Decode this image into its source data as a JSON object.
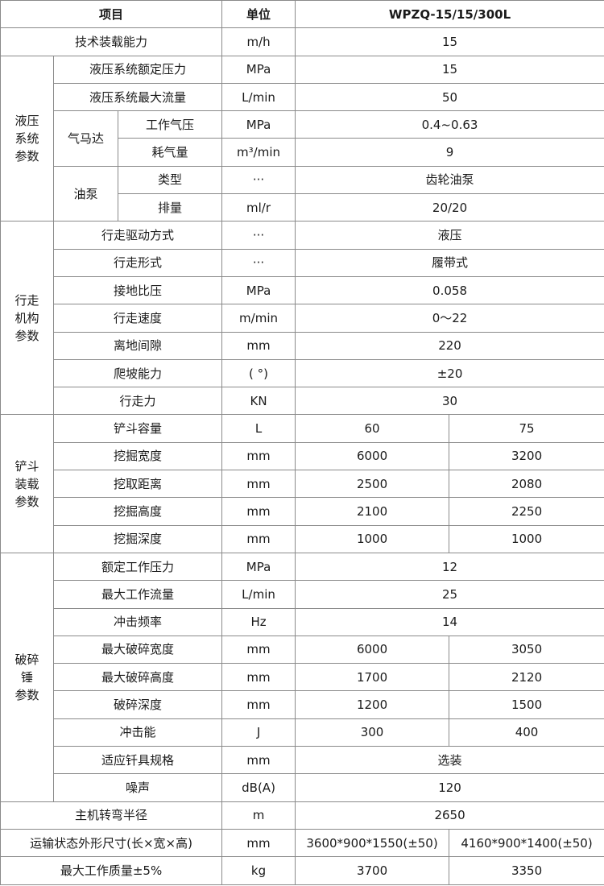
{
  "header": {
    "item": "项目",
    "unit": "单位",
    "model": "WPZQ-15/15/300L"
  },
  "sections": [
    {
      "rows": [
        {
          "label": "技术装载能力",
          "unit": "m/h",
          "values": [
            "15"
          ]
        }
      ]
    },
    {
      "group": "液压\n系统\n参数",
      "rows": [
        {
          "label": "液压系统额定压力",
          "unit": "MPa",
          "values": [
            "15"
          ]
        },
        {
          "label": "液压系统最大流量",
          "unit": "L/min",
          "values": [
            "50"
          ]
        },
        {
          "sub": "气马达",
          "label": "工作气压",
          "unit": "MPa",
          "values": [
            "0.4~0.63"
          ]
        },
        {
          "sub": "气马达",
          "label": "耗气量",
          "unit": "m³/min",
          "values": [
            "9"
          ]
        },
        {
          "sub": "油泵",
          "label": "类型",
          "unit": "···",
          "values": [
            "齿轮油泵"
          ]
        },
        {
          "sub": "油泵",
          "label": "排量",
          "unit": "ml/r",
          "values": [
            "20/20"
          ]
        }
      ]
    },
    {
      "group": "行走\n机构\n参数",
      "rows": [
        {
          "label": "行走驱动方式",
          "unit": "···",
          "values": [
            "液压"
          ]
        },
        {
          "label": "行走形式",
          "unit": "···",
          "values": [
            "履带式"
          ]
        },
        {
          "label": "接地比压",
          "unit": "MPa",
          "values": [
            "0.058"
          ]
        },
        {
          "label": "行走速度",
          "unit": "m/min",
          "values": [
            "0～22"
          ]
        },
        {
          "label": "离地间隙",
          "unit": "mm",
          "values": [
            "220"
          ]
        },
        {
          "label": "爬坡能力",
          "unit": "( °)",
          "values": [
            "±20"
          ]
        },
        {
          "label": "行走力",
          "unit": "KN",
          "values": [
            "30"
          ]
        }
      ]
    },
    {
      "group": "铲斗\n装载\n参数",
      "rows": [
        {
          "label": "铲斗容量",
          "unit": "L",
          "values": [
            "60",
            "75"
          ]
        },
        {
          "label": "挖掘宽度",
          "unit": "mm",
          "values": [
            "6000",
            "3200"
          ]
        },
        {
          "label": "挖取距离",
          "unit": "mm",
          "values": [
            "2500",
            "2080"
          ]
        },
        {
          "label": "挖掘高度",
          "unit": "mm",
          "values": [
            "2100",
            "2250"
          ]
        },
        {
          "label": "挖掘深度",
          "unit": "mm",
          "values": [
            "1000",
            "1000"
          ]
        }
      ]
    },
    {
      "group": "破碎\n锤\n参数",
      "rows": [
        {
          "label": "额定工作压力",
          "unit": "MPa",
          "values": [
            "12"
          ]
        },
        {
          "label": "最大工作流量",
          "unit": "L/min",
          "values": [
            "25"
          ]
        },
        {
          "label": "冲击频率",
          "unit": "Hz",
          "values": [
            "14"
          ]
        },
        {
          "label": "最大破碎宽度",
          "unit": "mm",
          "values": [
            "6000",
            "3050"
          ]
        },
        {
          "label": "最大破碎高度",
          "unit": "mm",
          "values": [
            "1700",
            "2120"
          ]
        },
        {
          "label": "破碎深度",
          "unit": "mm",
          "values": [
            "1200",
            "1500"
          ]
        },
        {
          "label": "冲击能",
          "unit": "J",
          "values": [
            "300",
            "400"
          ]
        },
        {
          "label": "适应钎具规格",
          "unit": "mm",
          "values": [
            "选装"
          ]
        },
        {
          "label": "噪声",
          "unit": "dB(A)",
          "values": [
            "120"
          ]
        }
      ]
    },
    {
      "rows": [
        {
          "label": "主机转弯半径",
          "unit": "m",
          "values": [
            "2650"
          ]
        },
        {
          "label": "运输状态外形尺寸(长×宽×高)",
          "unit": "mm",
          "values": [
            "3600*900*1550(±50)",
            "4160*900*1400(±50)"
          ]
        },
        {
          "label": "最大工作质量±5%",
          "unit": "kg",
          "values": [
            "3700",
            "3350"
          ]
        }
      ]
    }
  ]
}
